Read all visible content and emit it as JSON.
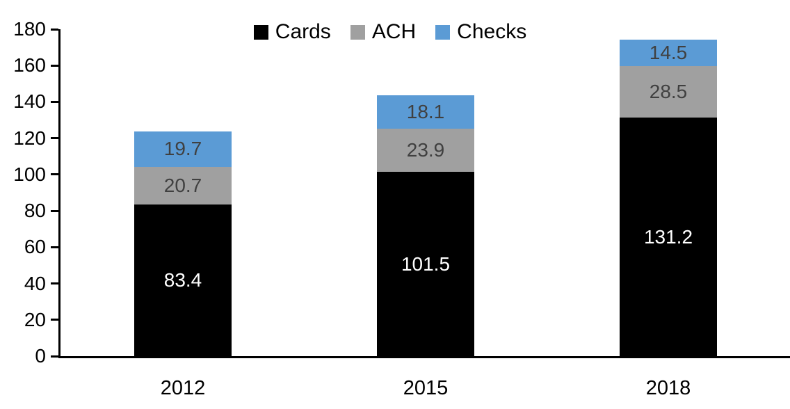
{
  "chart_data": {
    "type": "bar",
    "stacked": true,
    "title": "",
    "categories": [
      "2012",
      "2015",
      "2018"
    ],
    "series": [
      {
        "name": "Cards",
        "color": "#000000",
        "label_color": "#FFFFFF",
        "values": [
          83.4,
          101.5,
          131.2
        ]
      },
      {
        "name": "ACH",
        "color": "#A0A0A0",
        "label_color": "#404040",
        "values": [
          20.7,
          23.9,
          28.5
        ]
      },
      {
        "name": "Checks",
        "color": "#5B9BD5",
        "label_color": "#404040",
        "values": [
          19.7,
          18.1,
          14.5
        ]
      }
    ],
    "xlabel": "",
    "ylabel": "",
    "ylim": [
      0,
      180
    ],
    "ytick_step": 20,
    "yticks": [
      "0",
      "20",
      "40",
      "60",
      "80",
      "100",
      "120",
      "140",
      "160",
      "180"
    ],
    "legend": {
      "position": "top",
      "entries": [
        "Cards",
        "ACH",
        "Checks"
      ]
    },
    "grid": false,
    "axis_color": "#000000"
  }
}
